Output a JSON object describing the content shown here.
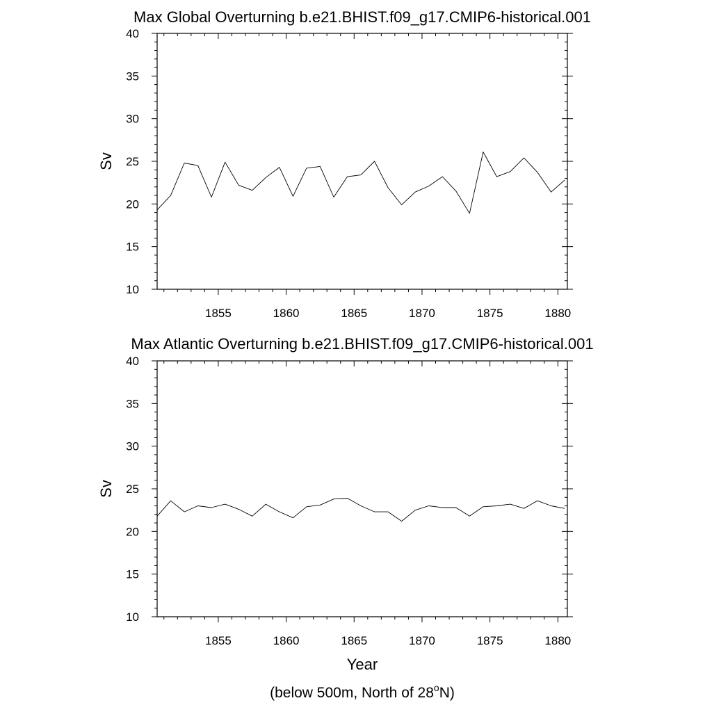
{
  "chart_data": [
    {
      "type": "line",
      "title": "Max Global Overturning b.e21.BHIST.f09_g17.CMIP6-historical.001",
      "xlabel": "",
      "ylabel": "Sv",
      "xlim": [
        1850.5,
        1880.7
      ],
      "ylim": [
        10,
        40
      ],
      "xticks": [
        1855,
        1860,
        1865,
        1870,
        1875,
        1880
      ],
      "yticks": [
        10,
        15,
        20,
        25,
        30,
        35,
        40
      ],
      "grid": false,
      "series": [
        {
          "name": "Max Global Overturning",
          "x": [
            1850.5,
            1851.5,
            1852.5,
            1853.5,
            1854.5,
            1855.5,
            1856.5,
            1857.5,
            1858.5,
            1859.5,
            1860.5,
            1861.5,
            1862.5,
            1863.5,
            1864.5,
            1865.5,
            1866.5,
            1867.5,
            1868.5,
            1869.5,
            1870.5,
            1871.5,
            1872.5,
            1873.5,
            1874.5,
            1875.5,
            1876.5,
            1877.5,
            1878.5,
            1879.5,
            1880.5
          ],
          "values": [
            19.3,
            21.0,
            24.8,
            24.5,
            20.8,
            24.9,
            22.2,
            21.6,
            23.1,
            24.3,
            20.9,
            24.2,
            24.4,
            20.8,
            23.2,
            23.4,
            25.0,
            21.9,
            19.9,
            21.4,
            22.1,
            23.2,
            21.5,
            18.9,
            26.1,
            23.2,
            23.8,
            25.4,
            23.7,
            21.4,
            22.8
          ]
        }
      ]
    },
    {
      "type": "line",
      "title": "Max Atlantic Overturning b.e21.BHIST.f09_g17.CMIP6-historical.001",
      "xlabel": "Year",
      "ylabel": "Sv",
      "xlim": [
        1850.5,
        1880.7
      ],
      "ylim": [
        10,
        40
      ],
      "xticks": [
        1855,
        1860,
        1865,
        1870,
        1875,
        1880
      ],
      "yticks": [
        10,
        15,
        20,
        25,
        30,
        35,
        40
      ],
      "grid": false,
      "series": [
        {
          "name": "Max Atlantic Overturning",
          "x": [
            1850.5,
            1851.5,
            1852.5,
            1853.5,
            1854.5,
            1855.5,
            1856.5,
            1857.5,
            1858.5,
            1859.5,
            1860.5,
            1861.5,
            1862.5,
            1863.5,
            1864.5,
            1865.5,
            1866.5,
            1867.5,
            1868.5,
            1869.5,
            1870.5,
            1871.5,
            1872.5,
            1873.5,
            1874.5,
            1875.5,
            1876.5,
            1877.5,
            1878.5,
            1879.5,
            1880.5
          ],
          "values": [
            21.8,
            23.6,
            22.3,
            23.0,
            22.8,
            23.2,
            22.6,
            21.8,
            23.2,
            22.3,
            21.6,
            22.9,
            23.1,
            23.8,
            23.9,
            23.0,
            22.3,
            22.3,
            21.2,
            22.5,
            23.0,
            22.8,
            22.8,
            21.8,
            22.9,
            23.0,
            23.2,
            22.7,
            23.6,
            23.0,
            22.7
          ]
        }
      ]
    }
  ],
  "footer": {
    "caption_main": "(below 500m, North of 28",
    "caption_super": "o",
    "caption_end": "N)"
  }
}
